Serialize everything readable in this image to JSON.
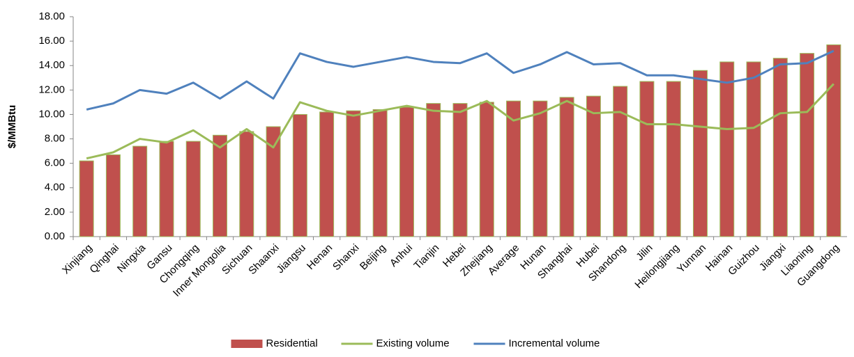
{
  "chart_data": {
    "type": "bar",
    "ylabel": "$/MMBtu",
    "categories": [
      "Xinjiang",
      "Qinghai",
      "Ningxia",
      "Gansu",
      "Chongqing",
      "Inner Mongolia",
      "Sichuan",
      "Shaanxi",
      "Jiangsu",
      "Henan",
      "Shanxi",
      "Beijing",
      "Anhui",
      "Tianjin",
      "Hebei",
      "Zhejiang",
      "Average",
      "Hunan",
      "Shanghai",
      "Hubei",
      "Shandong",
      "Jilin",
      "Heilongjiang",
      "Yunnan",
      "Hainan",
      "Guizhou",
      "Jiangxi",
      "Liaoning",
      "Guangdong"
    ],
    "series": [
      {
        "name": "Residential",
        "type": "bar",
        "color": "#c0504d",
        "values": [
          6.2,
          6.7,
          7.4,
          7.8,
          7.8,
          8.3,
          8.6,
          9.0,
          10.0,
          10.2,
          10.3,
          10.4,
          10.6,
          10.9,
          10.9,
          11.0,
          11.1,
          11.1,
          11.4,
          11.5,
          12.3,
          12.7,
          12.7,
          13.6,
          14.3,
          14.3,
          14.6,
          15.0,
          15.7
        ]
      },
      {
        "name": "Existing volume",
        "type": "line",
        "color": "#9bbb59",
        "values": [
          6.4,
          6.9,
          8.0,
          7.7,
          8.7,
          7.3,
          8.8,
          7.3,
          11.0,
          10.3,
          9.9,
          10.3,
          10.7,
          10.3,
          10.2,
          11.1,
          9.5,
          10.1,
          11.1,
          10.1,
          10.2,
          9.2,
          9.2,
          9.0,
          8.8,
          8.9,
          10.1,
          10.2,
          12.5
        ]
      },
      {
        "name": "Incremental volume",
        "type": "line",
        "color": "#4f81bd",
        "values": [
          10.4,
          10.9,
          12.0,
          11.7,
          12.6,
          11.3,
          12.7,
          11.3,
          15.0,
          14.3,
          13.9,
          14.3,
          14.7,
          14.3,
          14.2,
          15.0,
          13.4,
          14.1,
          15.1,
          14.1,
          14.2,
          13.2,
          13.2,
          12.9,
          12.6,
          13.0,
          14.1,
          14.2,
          15.2
        ]
      }
    ],
    "ylim": [
      0,
      18
    ],
    "yticks": [
      {
        "value": 0,
        "label": "0.00"
      },
      {
        "value": 2,
        "label": "2.00"
      },
      {
        "value": 4,
        "label": "4.00"
      },
      {
        "value": 6,
        "label": "6.00"
      },
      {
        "value": 8,
        "label": "8.00"
      },
      {
        "value": 10,
        "label": "10.00"
      },
      {
        "value": 12,
        "label": "12.00"
      },
      {
        "value": 14,
        "label": "14.00"
      },
      {
        "value": 16,
        "label": "16.00"
      },
      {
        "value": 18,
        "label": "18.00"
      }
    ],
    "grid": false,
    "legend": "bottom"
  }
}
